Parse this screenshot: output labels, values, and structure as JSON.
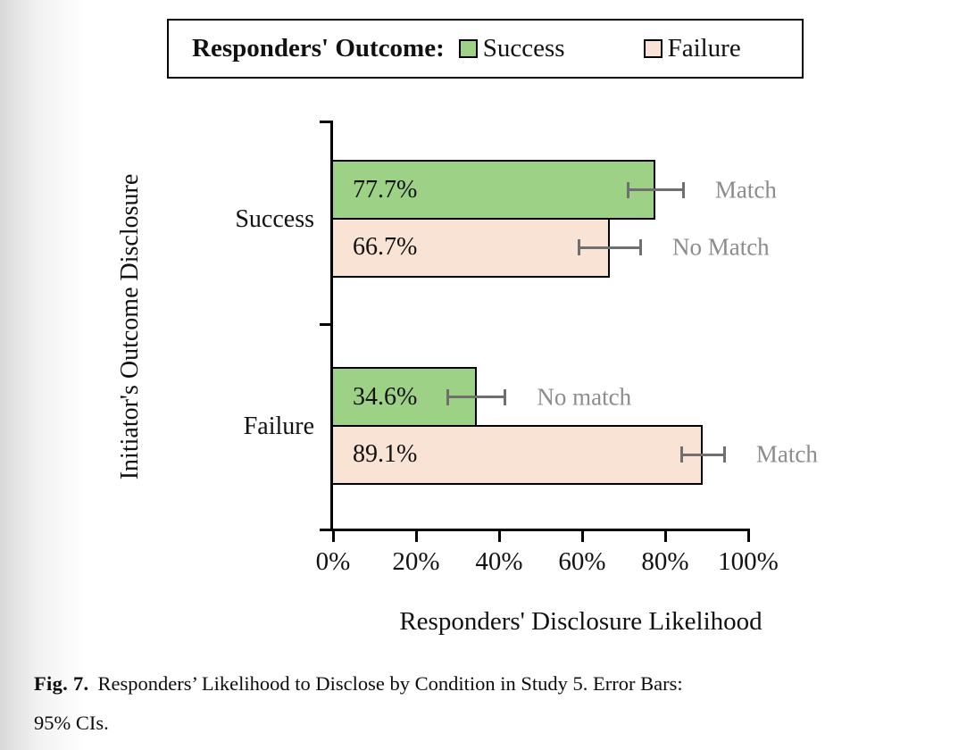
{
  "caption": {
    "label": "Fig. 7.",
    "line1": "Responders’ Likelihood to Disclose by Condition in Study 5. Error Bars:",
    "line2": "95% CIs.",
    "full_text": "Fig. 7. Responders’ Likelihood to Disclose by Condition in Study 5. Error Bars: 95% CIs."
  },
  "chart_data": {
    "type": "bar",
    "orientation": "horizontal",
    "title": "",
    "xlabel": "Responders' Disclosure Likelihood",
    "ylabel": "Initiator's Outcome Disclosure",
    "xlim": [
      0,
      100
    ],
    "grid": false,
    "legend_position": "top",
    "legend": {
      "title": "Responders' Outcome:",
      "entries": [
        {
          "label": "Success",
          "color": "#9dd186"
        },
        {
          "label": "Failure",
          "color": "#f8e3d5"
        }
      ]
    },
    "series_colors": {
      "Success": "#9dd186",
      "Failure": "#f8e3d5"
    },
    "x_ticks": [
      {
        "value": 0,
        "label": "0%"
      },
      {
        "value": 20,
        "label": "20%"
      },
      {
        "value": 40,
        "label": "40%"
      },
      {
        "value": 60,
        "label": "60%"
      },
      {
        "value": 80,
        "label": "80%"
      },
      {
        "value": 100,
        "label": "100%"
      }
    ],
    "groups": [
      {
        "category": "Success",
        "bars": [
          {
            "series": "Success",
            "value": 77.7,
            "value_label": "77.7%",
            "annotation": "Match",
            "ci_low": 70.7,
            "ci_high": 84.7
          },
          {
            "series": "Failure",
            "value": 66.7,
            "value_label": "66.7%",
            "annotation": "No Match",
            "ci_low": 59.0,
            "ci_high": 74.4
          }
        ]
      },
      {
        "category": "Failure",
        "bars": [
          {
            "series": "Success",
            "value": 34.6,
            "value_label": "34.6%",
            "annotation": "No match",
            "ci_low": 27.4,
            "ci_high": 41.8
          },
          {
            "series": "Failure",
            "value": 89.1,
            "value_label": "89.1%",
            "annotation": "Match",
            "ci_low": 83.6,
            "ci_high": 94.6
          }
        ]
      }
    ],
    "colors": {
      "annotation": "#8c8c8c",
      "error_bar": "#6f6f6f",
      "axis": "#000000",
      "bar_border": "#000000"
    }
  }
}
